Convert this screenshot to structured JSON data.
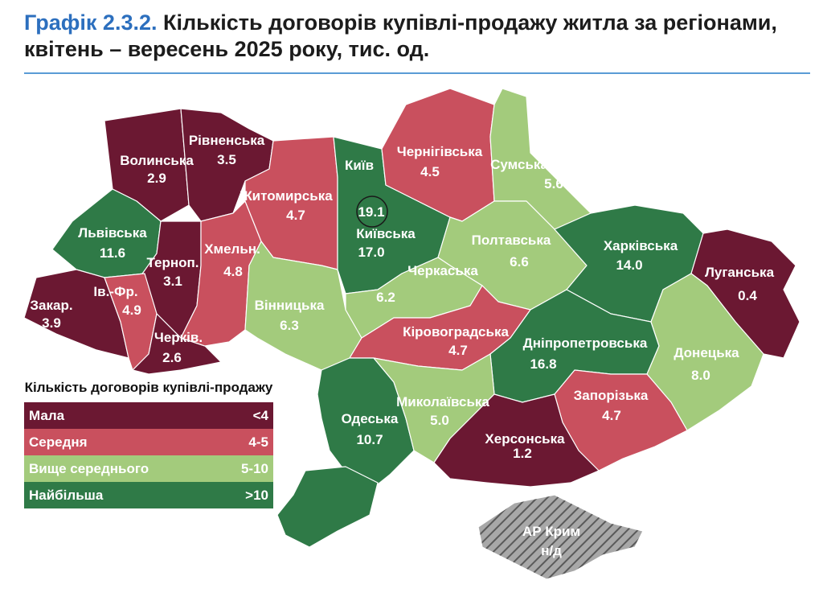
{
  "header": {
    "number": "Графік 2.3.2.",
    "title": "Кількість договорів купівлі-продажу житла за регіонами, квітень – вересень 2025 року, тис. од."
  },
  "colors": {
    "low": "#6b1832",
    "medium": "#c9505e",
    "above_medium": "#a3cb7c",
    "high": "#2f7a47",
    "no_data": "#9a9a9a"
  },
  "regions": [
    {
      "id": "volyn",
      "name": "Волинська",
      "value": "2.9",
      "level": "low"
    },
    {
      "id": "rivne",
      "name": "Рівненська",
      "value": "3.5",
      "level": "low"
    },
    {
      "id": "lviv",
      "name": "Львівська",
      "value": "11.6",
      "level": "high"
    },
    {
      "id": "ternopil",
      "name": "Терноп.",
      "value": "3.1",
      "level": "low"
    },
    {
      "id": "zakarpattia",
      "name": "Закар.",
      "value": "3.9",
      "level": "low"
    },
    {
      "id": "ivano-frankivsk",
      "name": "Ів.-Фр.",
      "value": "4.9",
      "level": "medium"
    },
    {
      "id": "chernivtsi",
      "name": "Черків.",
      "value": "2.6",
      "level": "low"
    },
    {
      "id": "khmelnytskyi",
      "name": "Хмельн.",
      "value": "4.8",
      "level": "medium"
    },
    {
      "id": "zhytomyr",
      "name": "Житомирська",
      "value": "4.7",
      "level": "medium"
    },
    {
      "id": "vinnytsia",
      "name": "Вінницька",
      "value": "6.3",
      "level": "above_medium"
    },
    {
      "id": "kyiv-city",
      "name": "Київ",
      "value": "19.1",
      "level": "high"
    },
    {
      "id": "kyiv-oblast",
      "name": "Київська",
      "value": "17.0",
      "level": "high"
    },
    {
      "id": "chernihiv",
      "name": "Чернігівська",
      "value": "4.5",
      "level": "medium"
    },
    {
      "id": "sumy",
      "name": "Сумська",
      "value": "5.6",
      "level": "above_medium"
    },
    {
      "id": "poltava",
      "name": "Полтавська",
      "value": "6.6",
      "level": "above_medium"
    },
    {
      "id": "cherkasy",
      "name": "Черкаська",
      "value": "6.2",
      "level": "above_medium"
    },
    {
      "id": "kharkiv",
      "name": "Харківська",
      "value": "14.0",
      "level": "high"
    },
    {
      "id": "luhansk",
      "name": "Луганська",
      "value": "0.4",
      "level": "low"
    },
    {
      "id": "kirovohrad",
      "name": "Кіровоградська",
      "value": "4.7",
      "level": "medium"
    },
    {
      "id": "dnipropetrovsk",
      "name": "Дніпропетровська",
      "value": "16.8",
      "level": "high"
    },
    {
      "id": "donetsk",
      "name": "Донецька",
      "value": "8.0",
      "level": "above_medium"
    },
    {
      "id": "odesa",
      "name": "Одеська",
      "value": "10.7",
      "level": "high"
    },
    {
      "id": "mykolaiv",
      "name": "Миколаївська",
      "value": "5.0",
      "level": "above_medium"
    },
    {
      "id": "zaporizhzhia",
      "name": "Запорізька",
      "value": "4.7",
      "level": "medium"
    },
    {
      "id": "kherson",
      "name": "Херсонська",
      "value": "1.2",
      "level": "low"
    },
    {
      "id": "crimea",
      "name": "АР Крим",
      "value": "н/д",
      "level": "no_data"
    }
  ],
  "legend": {
    "title": "Кількість договорів купівлі-продажу",
    "items": [
      {
        "label": "Мала",
        "range": "<4",
        "level": "low"
      },
      {
        "label": "Середня",
        "range": "4-5",
        "level": "medium"
      },
      {
        "label": "Вище середнього",
        "range": "5-10",
        "level": "above_medium"
      },
      {
        "label": "Найбільша",
        "range": ">10",
        "level": "high"
      }
    ]
  }
}
